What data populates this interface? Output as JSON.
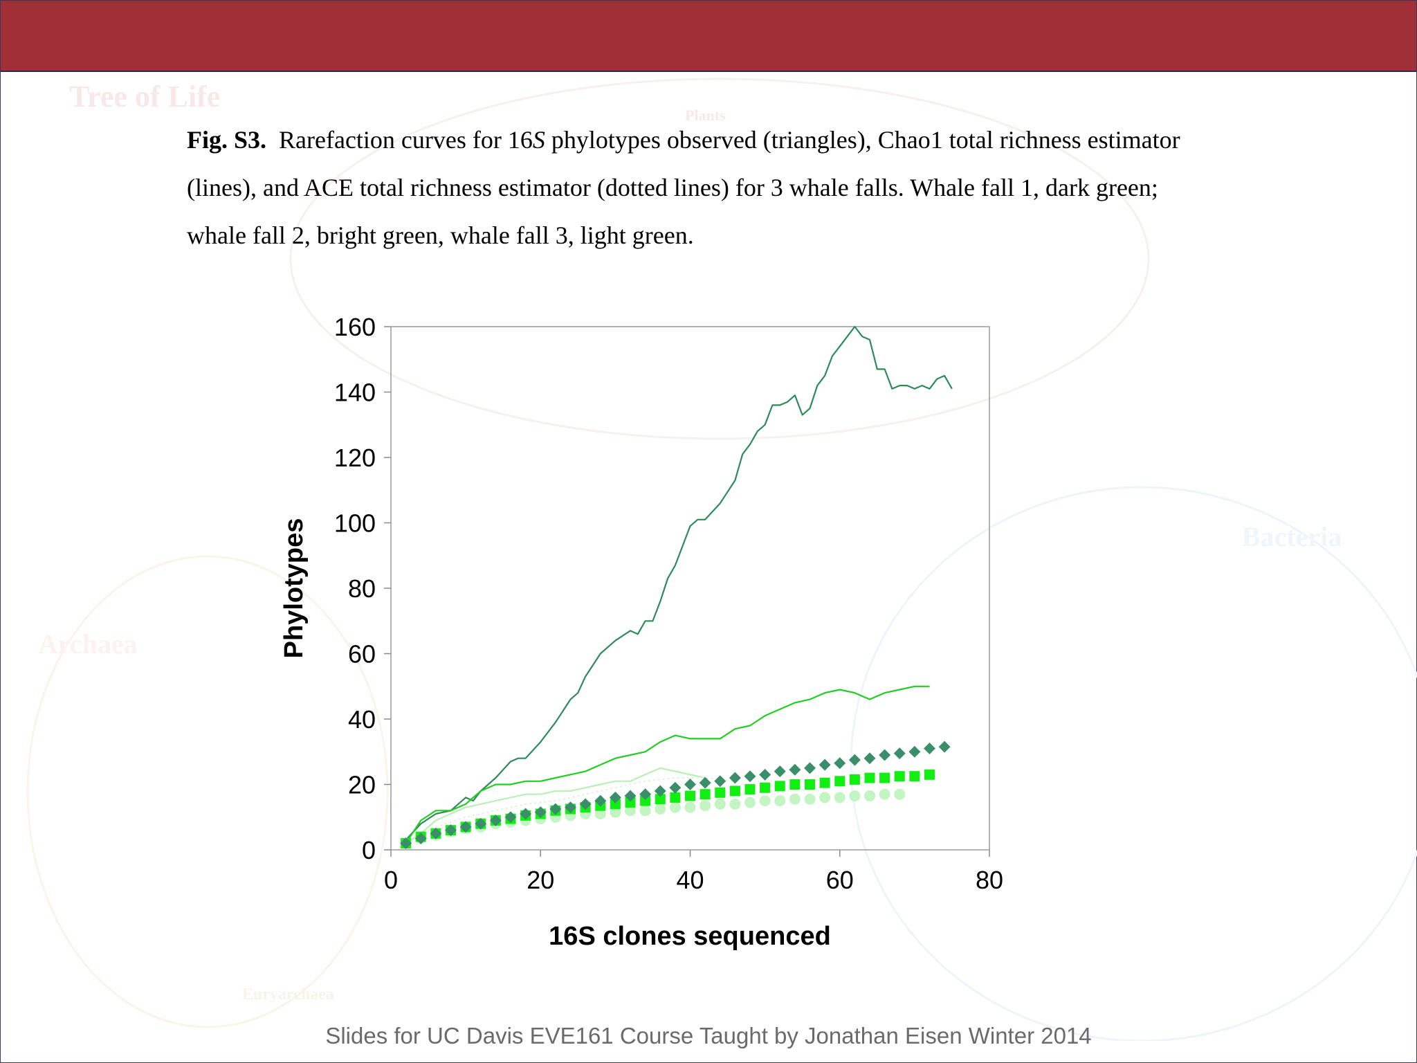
{
  "slide": {
    "watermark_labels": [
      "Tree of Life",
      "Plants",
      "Archaea",
      "Bacteria",
      "Euryarchaea"
    ],
    "caption": {
      "figure_label": "Fig. S3.",
      "text_part1": "Rarefaction curves for 16",
      "text_italic": "S",
      "text_part2": " phylotypes observed (triangles), Chao1 total richness estimator (lines), and ACE total richness estimator (dotted lines) for 3 whale falls.  Whale fall 1, dark green; whale fall 2, bright green, whale fall 3, light green."
    },
    "footer": "Slides for UC Davis EVE161 Course Taught by Jonathan Eisen Winter 2014"
  },
  "chart_data": {
    "type": "line",
    "title": "",
    "xlabel": "16S clones sequenced",
    "ylabel": "Phylotypes",
    "xlim": [
      0,
      80
    ],
    "ylim": [
      0,
      160
    ],
    "xticks": [
      0,
      20,
      40,
      60,
      80
    ],
    "yticks": [
      0,
      20,
      40,
      60,
      80,
      100,
      120,
      140,
      160
    ],
    "grid": false,
    "legend": "none",
    "colors": {
      "dark_green": "#2e8b57",
      "bright_green": "#22cc22",
      "light_green": "#b8f0b8",
      "marker_dark": "#3a8f6a",
      "marker_bright": "#11ee11",
      "marker_light": "#c2f5c2"
    },
    "lines": [
      {
        "id": "chao1-whale-fall-1",
        "color": "#2e8b57",
        "x": [
          2,
          4,
          6,
          8,
          10,
          11,
          12,
          14,
          16,
          17,
          18,
          20,
          22,
          24,
          25,
          26,
          28,
          30,
          32,
          33,
          34,
          35,
          36,
          37,
          38,
          40,
          41,
          42,
          44,
          46,
          47,
          48,
          49,
          50,
          51,
          52,
          53,
          54,
          55,
          56,
          57,
          58,
          59,
          60,
          61,
          62,
          63,
          64,
          65,
          66,
          67,
          68,
          69,
          70,
          71,
          72,
          73,
          74,
          75
        ],
        "y": [
          3,
          8,
          11,
          12,
          16,
          15,
          18,
          22,
          27,
          28,
          28,
          33,
          39,
          46,
          48,
          53,
          60,
          64,
          67,
          66,
          70,
          70,
          76,
          83,
          87,
          99,
          101,
          101,
          106,
          113,
          121,
          124,
          128,
          130,
          136,
          136,
          137,
          139,
          133,
          135,
          142,
          145,
          151,
          154,
          157,
          160,
          157,
          156,
          147,
          147,
          141,
          142,
          142,
          141,
          142,
          141,
          144,
          145,
          141
        ]
      },
      {
        "id": "chao1-whale-fall-2",
        "color": "#22cc22",
        "x": [
          2,
          4,
          6,
          8,
          10,
          12,
          14,
          16,
          18,
          20,
          22,
          24,
          26,
          28,
          30,
          32,
          34,
          36,
          38,
          40,
          42,
          44,
          46,
          48,
          50,
          52,
          54,
          56,
          58,
          60,
          62,
          64,
          66,
          68,
          70,
          72
        ],
        "y": [
          2,
          9,
          12,
          12,
          14,
          18,
          20,
          20,
          21,
          21,
          22,
          23,
          24,
          26,
          28,
          29,
          30,
          33,
          35,
          34,
          34,
          34,
          37,
          38,
          41,
          43,
          45,
          46,
          48,
          49,
          48,
          46,
          48,
          49,
          50,
          50
        ]
      },
      {
        "id": "chao1-whale-fall-3",
        "color": "#b8f0b8",
        "x": [
          2,
          4,
          6,
          8,
          10,
          12,
          14,
          16,
          18,
          20,
          22,
          24,
          26,
          28,
          30,
          32,
          34,
          36,
          38,
          40,
          42
        ],
        "y": [
          2,
          5,
          9,
          11,
          13,
          14,
          15,
          16,
          17,
          17,
          18,
          18,
          19,
          20,
          21,
          21,
          23,
          25,
          24,
          23,
          22
        ]
      },
      {
        "id": "ace-whale-fall-3",
        "color": "#dcf6dc",
        "dashed": true,
        "x": [
          2,
          6,
          10,
          14,
          18,
          22,
          26,
          30,
          34,
          38,
          42,
          46
        ],
        "y": [
          2,
          7,
          10,
          12,
          14,
          15,
          17,
          19,
          21,
          22,
          22,
          21
        ]
      }
    ],
    "markers": [
      {
        "id": "observed-whale-fall-1",
        "shape": "diamond",
        "color": "#3a8f6a",
        "x": [
          2,
          4,
          6,
          8,
          10,
          12,
          14,
          16,
          18,
          20,
          22,
          24,
          26,
          28,
          30,
          32,
          34,
          36,
          38,
          40,
          42,
          44,
          46,
          48,
          50,
          52,
          54,
          56,
          58,
          60,
          62,
          64,
          66,
          68,
          70,
          72,
          74
        ],
        "y": [
          2,
          3.5,
          5,
          6,
          7,
          8,
          9,
          10,
          11,
          11.5,
          12.5,
          13,
          14,
          15,
          16,
          16.5,
          17,
          18,
          19,
          20,
          20.5,
          21,
          22,
          22.5,
          23,
          24,
          24.5,
          25,
          26,
          26.5,
          27.5,
          28,
          29,
          29.5,
          30,
          31,
          31.5
        ]
      },
      {
        "id": "observed-whale-fall-2",
        "shape": "square",
        "color": "#11ee11",
        "x": [
          2,
          4,
          6,
          8,
          10,
          12,
          14,
          16,
          18,
          20,
          22,
          24,
          26,
          28,
          30,
          32,
          34,
          36,
          38,
          40,
          42,
          44,
          46,
          48,
          50,
          52,
          54,
          56,
          58,
          60,
          62,
          64,
          66,
          68,
          70,
          72
        ],
        "y": [
          2,
          4,
          5,
          6,
          7,
          8,
          9,
          9.5,
          10.5,
          11,
          12,
          12.5,
          13,
          13.5,
          14,
          14.5,
          15,
          15.5,
          16,
          16.5,
          17,
          17.5,
          18,
          18.5,
          19,
          19.5,
          20,
          20,
          20.5,
          21,
          21.5,
          22,
          22,
          22.5,
          22.5,
          23
        ]
      },
      {
        "id": "observed-whale-fall-3",
        "shape": "circle",
        "color": "#c2f5c2",
        "x": [
          2,
          4,
          6,
          8,
          10,
          12,
          14,
          16,
          18,
          20,
          22,
          24,
          26,
          28,
          30,
          32,
          34,
          36,
          38,
          40,
          42,
          44,
          46,
          48,
          50,
          52,
          54,
          56,
          58,
          60,
          62,
          64,
          66,
          68
        ],
        "y": [
          2,
          3.5,
          4.5,
          5.5,
          6.5,
          7,
          8,
          8.5,
          9,
          9.5,
          10,
          10.5,
          11,
          11,
          11.5,
          12,
          12,
          12.5,
          13,
          13,
          13.5,
          14,
          14,
          14.5,
          15,
          15,
          15.5,
          15.5,
          16,
          16,
          16.5,
          16.5,
          17,
          17
        ]
      }
    ]
  }
}
